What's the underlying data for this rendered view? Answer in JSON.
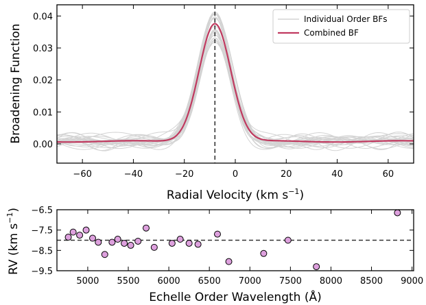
{
  "chart_data": [
    {
      "type": "line",
      "xlabel": "Radial Velocity (km s",
      "xlabel_sup": "−1",
      "xlabel_close": ")",
      "ylabel": "Broadening Function",
      "xlim": [
        -70,
        70
      ],
      "ylim": [
        -0.006,
        0.0435
      ],
      "x_ticks": [
        -60,
        -40,
        -20,
        0,
        20,
        40,
        60
      ],
      "x_tick_labels": [
        "−60",
        "−40",
        "−20",
        "0",
        "20",
        "40",
        "60"
      ],
      "y_ticks": [
        0.0,
        0.01,
        0.02,
        0.03,
        0.04
      ],
      "y_tick_labels": [
        "0.00",
        "0.01",
        "0.02",
        "0.03",
        "0.04"
      ],
      "grid": false,
      "legend_position": "top-right",
      "vline_x": -8,
      "series": [
        {
          "name": "Individual Order BFs",
          "color": "#d3d3d3",
          "count": 24,
          "shape": "gaussian",
          "center": -8,
          "sigma": 6.2,
          "peak_range": [
            0.031,
            0.041
          ],
          "baseline": 0.0008,
          "baseline_noise": 0.002
        },
        {
          "name": "Combined BF",
          "color": "#c0395f",
          "shape": "gaussian",
          "center": -8,
          "sigma": 6.2,
          "peak": 0.0368,
          "baseline": 0.0008
        }
      ]
    },
    {
      "type": "scatter",
      "xlabel": "Echelle Order Wavelength (Å)",
      "ylabel": "RV (km s",
      "ylabel_sup": "−1",
      "ylabel_close": ")",
      "xlim": [
        4620,
        9020
      ],
      "ylim": [
        -9.5,
        -6.5
      ],
      "x_ticks": [
        5000,
        5500,
        6000,
        6500,
        7000,
        7500,
        8000,
        8500,
        9000
      ],
      "x_tick_labels": [
        "5000",
        "5500",
        "6000",
        "6500",
        "7000",
        "7500",
        "8000",
        "8500",
        "9000"
      ],
      "y_ticks": [
        -9.5,
        -8.5,
        -7.5,
        -6.5
      ],
      "y_tick_labels": [
        "−9.5",
        "−8.5",
        "−7.5",
        "−6.5"
      ],
      "hline_y": -8.0,
      "marker_color": "#dda0dd",
      "points": [
        {
          "x": 4760,
          "y": -7.85
        },
        {
          "x": 4820,
          "y": -7.6
        },
        {
          "x": 4900,
          "y": -7.75
        },
        {
          "x": 4980,
          "y": -7.5
        },
        {
          "x": 5060,
          "y": -7.9
        },
        {
          "x": 5130,
          "y": -8.1
        },
        {
          "x": 5210,
          "y": -8.7
        },
        {
          "x": 5300,
          "y": -8.1
        },
        {
          "x": 5370,
          "y": -7.95
        },
        {
          "x": 5450,
          "y": -8.15
        },
        {
          "x": 5530,
          "y": -8.25
        },
        {
          "x": 5620,
          "y": -8.05
        },
        {
          "x": 5720,
          "y": -7.4
        },
        {
          "x": 5820,
          "y": -8.35
        },
        {
          "x": 6040,
          "y": -8.15
        },
        {
          "x": 6140,
          "y": -7.95
        },
        {
          "x": 6250,
          "y": -8.15
        },
        {
          "x": 6360,
          "y": -8.2
        },
        {
          "x": 6600,
          "y": -7.7
        },
        {
          "x": 6740,
          "y": -9.05
        },
        {
          "x": 7170,
          "y": -8.65
        },
        {
          "x": 7470,
          "y": -8.0
        },
        {
          "x": 7820,
          "y": -9.3
        },
        {
          "x": 8820,
          "y": -6.65
        }
      ]
    }
  ]
}
